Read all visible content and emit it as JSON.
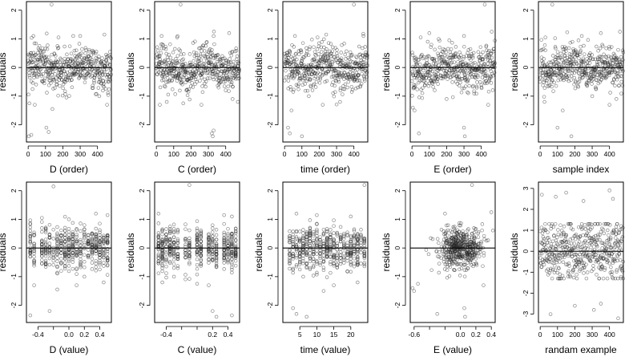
{
  "chart_data": [
    {
      "type": "scatter",
      "xlabel": "D (order)",
      "ylabel": "residuals",
      "xlim": [
        -10,
        480
      ],
      "ylim": [
        -2.6,
        2.3
      ],
      "xticks": [
        0,
        100,
        200,
        300,
        400
      ],
      "yticks": [
        -2,
        -1,
        0,
        1,
        2
      ],
      "hline": 0,
      "n": 480,
      "x_kind": "index",
      "spread": 0.5,
      "outliers": [
        [
          4,
          -2.4
        ],
        [
          18,
          -2.35
        ],
        [
          105,
          -2.1
        ],
        [
          118,
          -2.25
        ],
        [
          135,
          2.2
        ],
        [
          140,
          -1.45
        ],
        [
          38,
          -1.3
        ],
        [
          7,
          -1.25
        ],
        [
          455,
          -1.3
        ],
        [
          410,
          -1.0
        ],
        [
          30,
          1.1
        ],
        [
          300,
          1.1
        ],
        [
          260,
          1.1
        ],
        [
          440,
          1.15
        ],
        [
          175,
          1.05
        ]
      ]
    },
    {
      "type": "scatter",
      "xlabel": "C (order)",
      "ylabel": "residuals",
      "xlim": [
        -10,
        480
      ],
      "ylim": [
        -2.6,
        2.3
      ],
      "xticks": [
        0,
        100,
        200,
        300,
        400
      ],
      "yticks": [
        -2,
        -1,
        0,
        1,
        2
      ],
      "hline": 0,
      "n": 480,
      "x_kind": "index",
      "spread": 0.5,
      "outliers": [
        [
          140,
          2.2
        ],
        [
          320,
          -2.3
        ],
        [
          325,
          -2.4
        ],
        [
          330,
          -2.2
        ],
        [
          20,
          -1.3
        ],
        [
          60,
          -1.2
        ],
        [
          155,
          -1.25
        ],
        [
          260,
          -1.3
        ],
        [
          440,
          -1.1
        ],
        [
          30,
          1.1
        ],
        [
          120,
          1.05
        ],
        [
          330,
          1.1
        ],
        [
          420,
          1.2
        ],
        [
          470,
          -1.2
        ]
      ]
    },
    {
      "type": "scatter",
      "xlabel": "time (order)",
      "ylabel": "residuals",
      "xlim": [
        -10,
        480
      ],
      "ylim": [
        -2.6,
        2.3
      ],
      "xticks": [
        0,
        100,
        200,
        300,
        400
      ],
      "yticks": [
        -2,
        -1,
        0,
        1,
        2
      ],
      "hline": 0,
      "n": 480,
      "x_kind": "index",
      "spread": 0.5,
      "outliers": [
        [
          20,
          -2.1
        ],
        [
          30,
          -2.3
        ],
        [
          100,
          -2.4
        ],
        [
          40,
          -1.5
        ],
        [
          220,
          -1.3
        ],
        [
          400,
          2.2
        ],
        [
          60,
          1.1
        ],
        [
          240,
          1.15
        ],
        [
          455,
          1.1
        ],
        [
          320,
          -1.2
        ],
        [
          140,
          -1.0
        ],
        [
          190,
          1.05
        ]
      ]
    },
    {
      "type": "scatter",
      "xlabel": "E (order)",
      "ylabel": "residuals",
      "xlim": [
        -10,
        480
      ],
      "ylim": [
        -2.6,
        2.3
      ],
      "xticks": [
        0,
        100,
        200,
        300,
        400
      ],
      "yticks": [
        -2,
        -1,
        0,
        1,
        2
      ],
      "hline": 0,
      "n": 480,
      "x_kind": "index",
      "spread": 0.5,
      "outliers": [
        [
          5,
          -1.4
        ],
        [
          15,
          -1.5
        ],
        [
          40,
          -2.3
        ],
        [
          300,
          -2.1
        ],
        [
          305,
          -2.4
        ],
        [
          420,
          2.2
        ],
        [
          440,
          -1.3
        ],
        [
          100,
          1.2
        ],
        [
          50,
          1.05
        ],
        [
          300,
          1.1
        ],
        [
          200,
          -1.1
        ],
        [
          460,
          1.25
        ]
      ]
    },
    {
      "type": "scatter",
      "xlabel": "sample index",
      "ylabel": "residuals",
      "xlim": [
        -10,
        480
      ],
      "ylim": [
        -2.6,
        2.3
      ],
      "xticks": [
        0,
        100,
        200,
        300,
        400
      ],
      "yticks": [
        -2,
        -1,
        0,
        1,
        2
      ],
      "hline": 0,
      "n": 480,
      "x_kind": "index",
      "spread": 0.5,
      "outliers": [
        [
          70,
          2.2
        ],
        [
          100,
          -2.1
        ],
        [
          180,
          -2.4
        ],
        [
          130,
          -1.5
        ],
        [
          25,
          -1.2
        ],
        [
          400,
          -1.3
        ],
        [
          30,
          1.05
        ],
        [
          350,
          1.2
        ],
        [
          460,
          1.25
        ],
        [
          300,
          -1.0
        ],
        [
          240,
          1.1
        ],
        [
          440,
          -1.1
        ]
      ]
    },
    {
      "type": "scatter",
      "xlabel": "D (value)",
      "ylabel": "residuals",
      "xlim": [
        -0.55,
        0.55
      ],
      "ylim": [
        -2.6,
        2.3
      ],
      "xticks": [
        -0.4,
        -0.2,
        0.0,
        0.2,
        0.4
      ],
      "tick_labels": [
        "-0.4",
        "",
        "0.0",
        "0.2",
        "0.4"
      ],
      "yticks": [
        -2,
        -1,
        0,
        1,
        2
      ],
      "hline": 0,
      "n": 480,
      "x_kind": "discrete",
      "x_levels": [
        -0.5,
        -0.45,
        -0.35,
        -0.3,
        -0.25,
        -0.2,
        -0.15,
        -0.1,
        -0.05,
        0.0,
        0.05,
        0.1,
        0.15,
        0.2,
        0.25,
        0.3,
        0.35,
        0.4,
        0.45,
        0.5
      ],
      "spread": 0.5,
      "outliers": [
        [
          -0.5,
          -2.35
        ],
        [
          -0.2,
          2.15
        ],
        [
          -0.25,
          -2.2
        ],
        [
          -0.15,
          -1.45
        ],
        [
          -0.45,
          -1.3
        ],
        [
          0.35,
          1.2
        ],
        [
          0.5,
          1.15
        ],
        [
          0.1,
          -1.3
        ],
        [
          0.2,
          -1.0
        ],
        [
          -0.35,
          1.05
        ],
        [
          0.0,
          1.0
        ],
        [
          0.45,
          -1.2
        ]
      ]
    },
    {
      "type": "scatter",
      "xlabel": "C (value)",
      "ylabel": "residuals",
      "xlim": [
        -0.55,
        0.55
      ],
      "ylim": [
        -2.6,
        2.3
      ],
      "xticks": [
        -0.4,
        -0.2,
        0.0,
        0.2,
        0.4
      ],
      "tick_labels": [
        "-0.4",
        "",
        "",
        "0.2",
        "0.4"
      ],
      "yticks": [
        -2,
        -1,
        0,
        1,
        2
      ],
      "hline": 0,
      "n": 480,
      "x_kind": "discrete",
      "x_levels": [
        -0.5,
        -0.45,
        -0.4,
        -0.35,
        -0.3,
        -0.25,
        -0.15,
        -0.1,
        0.0,
        0.05,
        0.15,
        0.2,
        0.25,
        0.35,
        0.4,
        0.45,
        0.5
      ],
      "spread": 0.48,
      "outliers": [
        [
          -0.1,
          2.2
        ],
        [
          0.2,
          -2.2
        ],
        [
          0.25,
          -2.4
        ],
        [
          0.45,
          -2.35
        ],
        [
          -0.45,
          -1.2
        ],
        [
          -0.3,
          -1.0
        ],
        [
          0.0,
          -1.25
        ],
        [
          0.45,
          1.1
        ],
        [
          0.35,
          1.15
        ],
        [
          -0.5,
          1.2
        ],
        [
          0.15,
          -1.3
        ]
      ]
    },
    {
      "type": "scatter",
      "xlabel": "time (value)",
      "ylabel": "residuals",
      "xlim": [
        0,
        25
      ],
      "ylim": [
        -2.6,
        2.3
      ],
      "xticks": [
        5,
        10,
        15,
        20
      ],
      "yticks": [
        -2,
        -1,
        0,
        1,
        2
      ],
      "hline": 0,
      "n": 480,
      "x_kind": "discrete",
      "x_levels": [
        2,
        3,
        4,
        5,
        6,
        7,
        8,
        9,
        10,
        11,
        12,
        13,
        14,
        15,
        16,
        17,
        18,
        19,
        20,
        21,
        22,
        23,
        24
      ],
      "spread": 0.5,
      "outliers": [
        [
          3,
          -2.1
        ],
        [
          4,
          -2.3
        ],
        [
          7,
          -2.4
        ],
        [
          12,
          -1.5
        ],
        [
          24,
          2.2
        ],
        [
          15,
          -1.3
        ],
        [
          4,
          1.2
        ],
        [
          20,
          1.1
        ],
        [
          10,
          1.15
        ],
        [
          22,
          -1.2
        ],
        [
          6,
          -1.0
        ]
      ]
    },
    {
      "type": "scatter",
      "xlabel": "E (value)",
      "ylabel": "residuals",
      "xlim": [
        -0.65,
        0.45
      ],
      "ylim": [
        -2.6,
        2.3
      ],
      "xticks": [
        -0.6,
        -0.4,
        -0.2,
        0.0,
        0.2,
        0.4
      ],
      "tick_labels": [
        "-0.6",
        "",
        "",
        "0.0",
        "0.2",
        "0.4"
      ],
      "yticks": [
        -2,
        -1,
        0,
        1,
        2
      ],
      "hline": 0,
      "n": 480,
      "x_kind": "continuous_center",
      "x_center": 0.0,
      "x_sd": 0.14,
      "spread": 0.5,
      "outliers": [
        [
          -0.62,
          -1.4
        ],
        [
          -0.6,
          -1.5
        ],
        [
          -0.3,
          -2.3
        ],
        [
          0.05,
          -2.1
        ],
        [
          0.06,
          -2.4
        ],
        [
          0.15,
          2.2
        ],
        [
          -0.2,
          1.2
        ],
        [
          0.3,
          -1.3
        ],
        [
          0.4,
          1.25
        ],
        [
          -0.55,
          -1.25
        ]
      ]
    },
    {
      "type": "scatter",
      "xlabel": "randam example",
      "ylabel": "residuals",
      "xlim": [
        -10,
        480
      ],
      "ylim": [
        -3.4,
        3.3
      ],
      "xticks": [
        0,
        100,
        200,
        300,
        400
      ],
      "yticks": [
        -3,
        -2,
        -1,
        0,
        1,
        2,
        3
      ],
      "hline": 0,
      "n": 480,
      "x_kind": "index",
      "spread": 1.0,
      "outliers": [
        [
          10,
          2.7
        ],
        [
          60,
          -3.0
        ],
        [
          150,
          2.8
        ],
        [
          400,
          2.9
        ],
        [
          450,
          -3.2
        ],
        [
          420,
          2.5
        ],
        [
          310,
          -2.8
        ],
        [
          200,
          -2.6
        ],
        [
          90,
          2.6
        ],
        [
          250,
          2.4
        ],
        [
          350,
          -2.5
        ]
      ]
    }
  ]
}
